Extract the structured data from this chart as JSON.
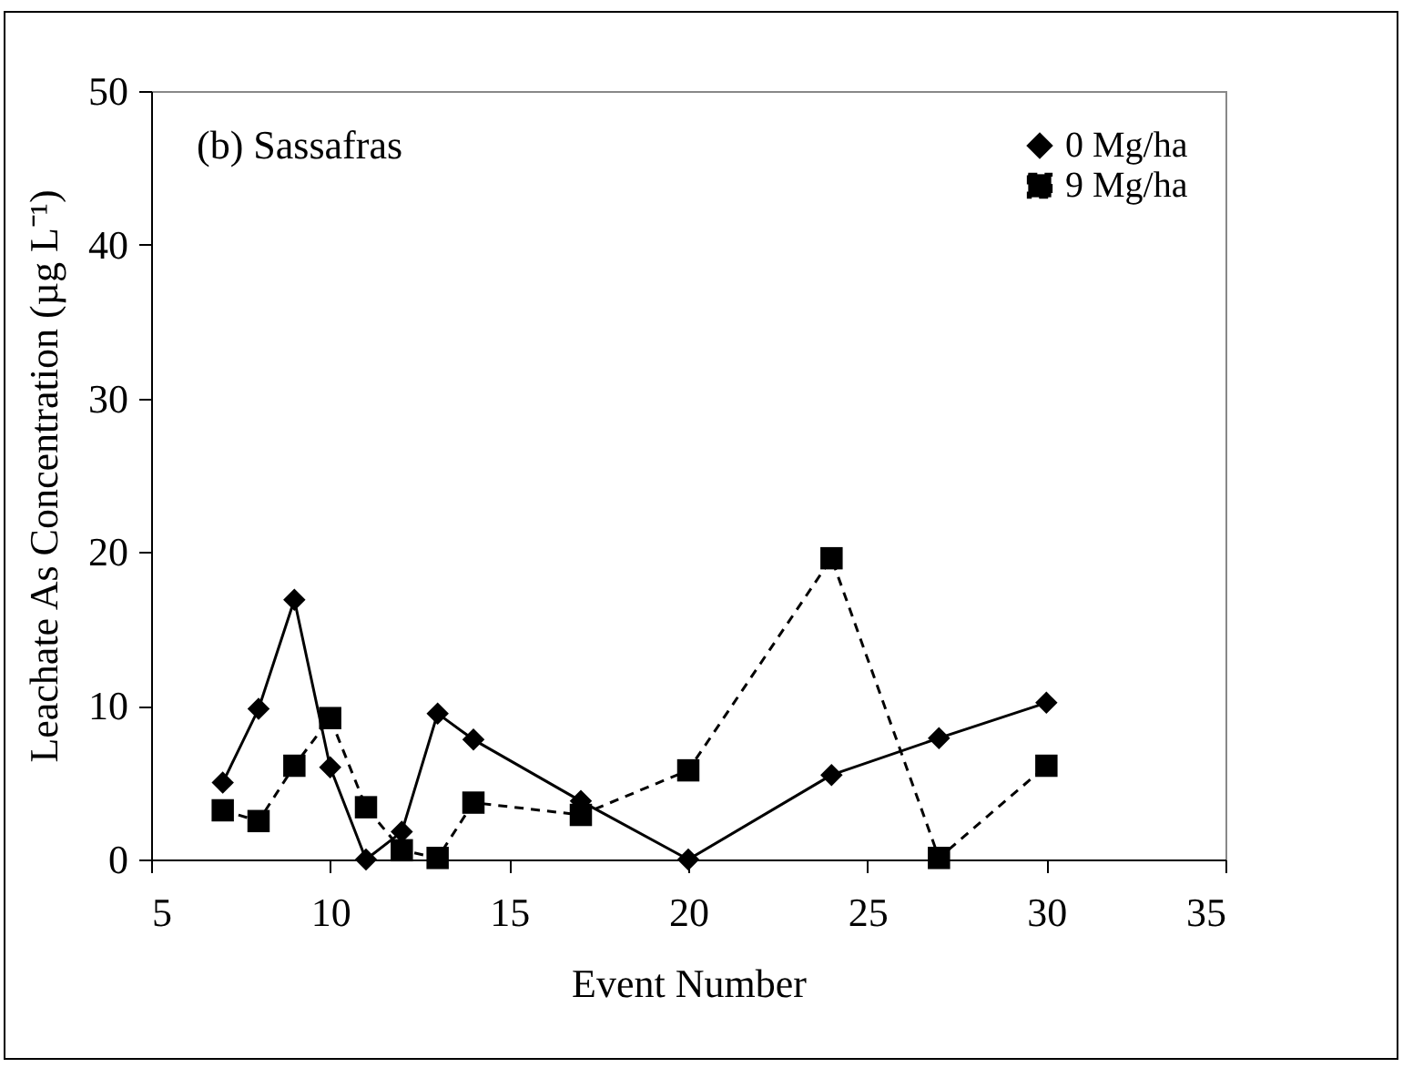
{
  "chart_data": {
    "type": "line",
    "xlabel": "Event Number",
    "ylabel": "Leachate As Concentration (µg L⁻¹)",
    "annotations": [
      "(b) Sassafras"
    ],
    "xlim": [
      5,
      35
    ],
    "xticks": [
      5,
      10,
      15,
      20,
      25,
      30,
      35
    ],
    "ylim": [
      0,
      50
    ],
    "yticks": [
      0,
      10,
      20,
      30,
      40,
      50
    ],
    "grid": false,
    "legend": "top right",
    "series": [
      {
        "name": "0 Mg/ha",
        "color": "#000000",
        "marker": "diamond",
        "line_style": "solid",
        "x": [
          7,
          8,
          9,
          10,
          11,
          12,
          13,
          14,
          17,
          20,
          24,
          27,
          30
        ],
        "values": [
          5,
          9.8,
          16.9,
          6,
          0,
          1.8,
          9.5,
          7.8,
          3.8,
          0,
          5.5,
          7.9,
          10.2
        ]
      },
      {
        "name": "9 Mg/ha",
        "color": "#000000",
        "marker": "square",
        "line_style": "dashed",
        "x": [
          7,
          8,
          9,
          10,
          11,
          12,
          13,
          14,
          17,
          20,
          24,
          27,
          30
        ],
        "values": [
          3.2,
          2.5,
          6.1,
          9.2,
          3.4,
          0.6,
          0.1,
          3.7,
          2.9,
          5.8,
          19.6,
          0.1,
          6.1
        ]
      }
    ]
  }
}
